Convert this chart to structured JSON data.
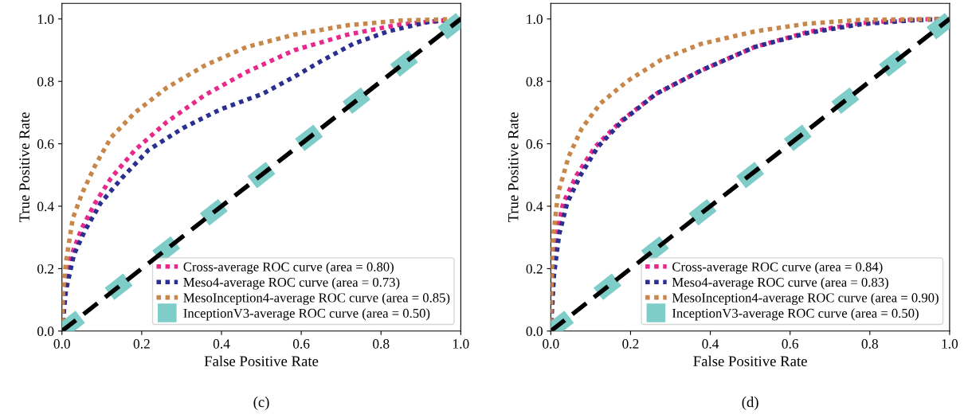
{
  "chart_data": [
    {
      "type": "line",
      "xlabel": "False Positive Rate",
      "ylabel": "True Positive Rate",
      "annotations": [
        "(c)"
      ],
      "xlim": [
        0,
        1
      ],
      "ylim": [
        0,
        1.05
      ],
      "xticks": [
        {
          "value": 0,
          "label": "0.0"
        },
        {
          "value": 0.2,
          "label": "0.2"
        },
        {
          "value": 0.4,
          "label": "0.4"
        },
        {
          "value": 0.6,
          "label": "0.6"
        },
        {
          "value": 0.8,
          "label": "0.8"
        },
        {
          "value": 1,
          "label": "1.0"
        }
      ],
      "yticks": [
        {
          "value": 0,
          "label": "0.0"
        },
        {
          "value": 0.2,
          "label": "0.2"
        },
        {
          "value": 0.4,
          "label": "0.4"
        },
        {
          "value": 0.6,
          "label": "0.6"
        },
        {
          "value": 0.8,
          "label": "0.8"
        },
        {
          "value": 1,
          "label": "1.0"
        }
      ],
      "grid": false,
      "legend": "bottom right",
      "marker": "none",
      "series": [
        {
          "name": "Cross-average ROC curve (area = 0.80)",
          "color": "#e8288a",
          "line_style": "dotted",
          "x": [
            0,
            0.007,
            0.023,
            0.05,
            0.083,
            0.123,
            0.183,
            0.263,
            0.357,
            0.463,
            0.583,
            0.717,
            0.85,
            1
          ],
          "values": [
            0,
            0.13,
            0.24,
            0.33,
            0.41,
            0.49,
            0.58,
            0.67,
            0.755,
            0.83,
            0.9,
            0.95,
            0.983,
            1
          ]
        },
        {
          "name": "Meso4-average ROC curve (area = 0.73)",
          "color": "#2b2f8f",
          "line_style": "dotted",
          "x": [
            0,
            0.01,
            0.03,
            0.057,
            0.097,
            0.15,
            0.217,
            0.303,
            0.397,
            0.503,
            0.583,
            0.65,
            0.73,
            0.817,
            0.917,
            1
          ],
          "values": [
            0,
            0.13,
            0.245,
            0.32,
            0.41,
            0.49,
            0.58,
            0.65,
            0.71,
            0.76,
            0.815,
            0.865,
            0.92,
            0.96,
            0.99,
            1
          ]
        },
        {
          "name": "MesoInception4-average ROC curve (area = 0.85)",
          "color": "#c8874a",
          "line_style": "dotted",
          "x": [
            0,
            0.003,
            0.01,
            0.027,
            0.05,
            0.083,
            0.123,
            0.183,
            0.263,
            0.357,
            0.463,
            0.583,
            0.717,
            0.85,
            1
          ],
          "values": [
            0,
            0.13,
            0.22,
            0.36,
            0.44,
            0.53,
            0.62,
            0.7,
            0.78,
            0.85,
            0.91,
            0.95,
            0.98,
            0.995,
            1
          ]
        },
        {
          "name": "InceptionV3-average ROC curve (area = 0.50)",
          "color": "#7ecdc8",
          "line_style": "dashed",
          "x": [
            0,
            1
          ],
          "values": [
            0,
            1
          ]
        },
        {
          "color": "#000000",
          "line_style": "dashed",
          "x": [
            0,
            1
          ],
          "values": [
            0,
            1
          ]
        }
      ]
    },
    {
      "type": "line",
      "xlabel": "False Positive Rate",
      "ylabel": "True Positive Rate",
      "annotations": [
        "(d)"
      ],
      "xlim": [
        0,
        1
      ],
      "ylim": [
        0,
        1.05
      ],
      "xticks": [
        {
          "value": 0,
          "label": "0.0"
        },
        {
          "value": 0.2,
          "label": "0.2"
        },
        {
          "value": 0.4,
          "label": "0.4"
        },
        {
          "value": 0.6,
          "label": "0.6"
        },
        {
          "value": 0.8,
          "label": "0.8"
        },
        {
          "value": 1,
          "label": "1.0"
        }
      ],
      "yticks": [
        {
          "value": 0,
          "label": "0.0"
        },
        {
          "value": 0.2,
          "label": "0.2"
        },
        {
          "value": 0.4,
          "label": "0.4"
        },
        {
          "value": 0.6,
          "label": "0.6"
        },
        {
          "value": 0.8,
          "label": "0.8"
        },
        {
          "value": 1,
          "label": "1.0"
        }
      ],
      "grid": false,
      "legend": "bottom right",
      "marker": "none",
      "series": [
        {
          "name": "Cross-average ROC curve (area = 0.84)",
          "color": "#e8288a",
          "line_style": "dotted",
          "x": [
            0,
            0.005,
            0.015,
            0.031,
            0.065,
            0.111,
            0.178,
            0.264,
            0.377,
            0.511,
            0.644,
            0.777,
            0.91,
            1
          ],
          "values": [
            0,
            0.18,
            0.31,
            0.41,
            0.5,
            0.59,
            0.675,
            0.76,
            0.835,
            0.91,
            0.958,
            0.987,
            0.998,
            1
          ]
        },
        {
          "name": "Meso4-average ROC curve (area = 0.83)",
          "color": "#2b2f8f",
          "line_style": "dotted",
          "x": [
            0,
            0.008,
            0.021,
            0.041,
            0.075,
            0.118,
            0.181,
            0.264,
            0.377,
            0.511,
            0.644,
            0.777,
            0.91,
            1
          ],
          "values": [
            0,
            0.18,
            0.31,
            0.41,
            0.5,
            0.59,
            0.675,
            0.76,
            0.835,
            0.91,
            0.955,
            0.983,
            0.996,
            1
          ]
        },
        {
          "name": "MesoInception4-average ROC curve (area = 0.90)",
          "color": "#c8874a",
          "line_style": "dotted",
          "x": [
            0,
            0.001,
            0.005,
            0.018,
            0.045,
            0.078,
            0.125,
            0.191,
            0.278,
            0.377,
            0.511,
            0.644,
            0.777,
            1
          ],
          "values": [
            0,
            0.1,
            0.29,
            0.44,
            0.56,
            0.65,
            0.73,
            0.8,
            0.87,
            0.92,
            0.96,
            0.985,
            0.997,
            1
          ]
        },
        {
          "name": "InceptionV3-average ROC curve (area = 0.50)",
          "color": "#7ecdc8",
          "line_style": "dashed",
          "x": [
            0,
            1
          ],
          "values": [
            0,
            1
          ]
        },
        {
          "color": "#000000",
          "line_style": "dashed",
          "x": [
            0,
            1
          ],
          "values": [
            0,
            1
          ]
        }
      ]
    }
  ]
}
